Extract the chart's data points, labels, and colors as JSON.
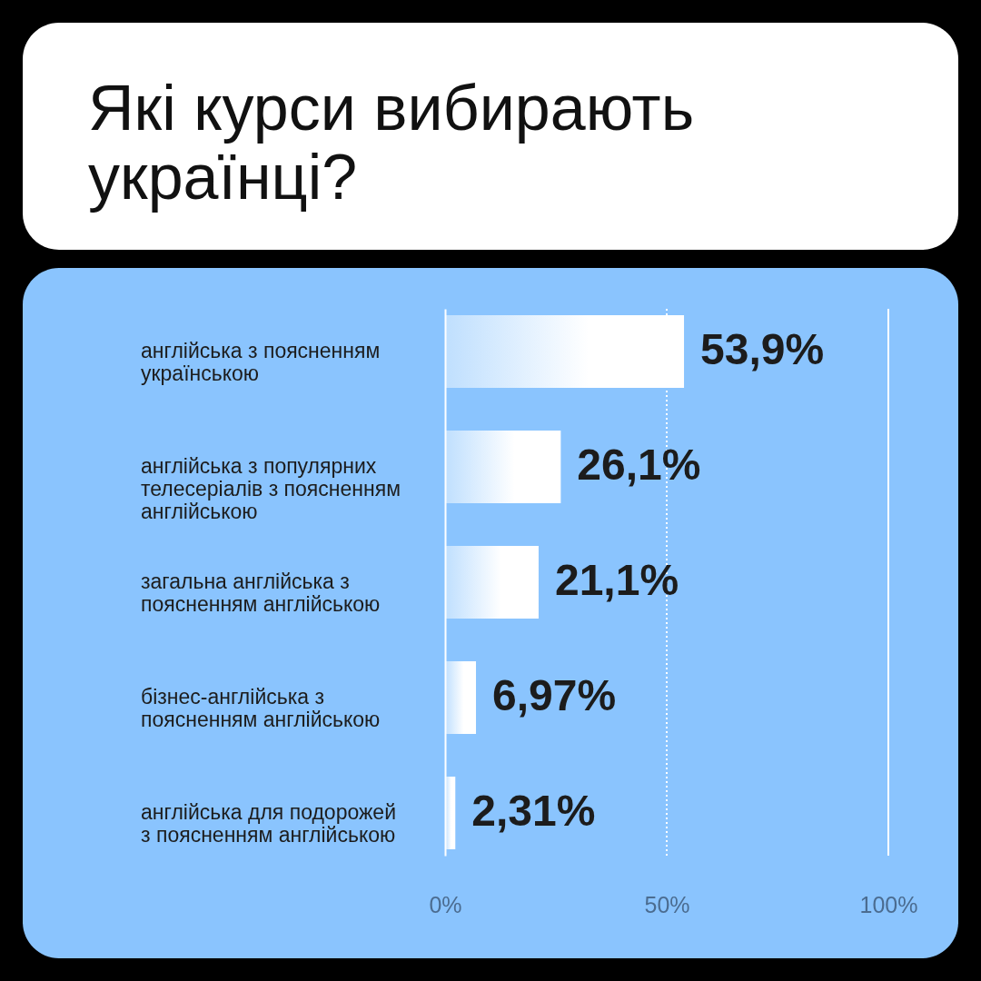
{
  "chart_data": {
    "type": "bar",
    "orientation": "horizontal",
    "title": "Які курси вибирають українці?",
    "categories": [
      "англійська з поясненням українською",
      "англійська з популярних телесеріалів з поясненням англійською",
      "загальна англійська з поясненням англійською",
      "бізнес-англійська з поясненням англійською",
      "англійська для подорожей з поясненням англійською"
    ],
    "values": [
      53.9,
      26.1,
      21.1,
      6.97,
      2.31
    ],
    "value_labels": [
      "53,9%",
      "26,1%",
      "21,1%",
      "6,97%",
      "2,31%"
    ],
    "color": "#ffffff",
    "xlim": [
      0,
      100
    ],
    "xticks": [
      {
        "value": 0,
        "label": "0%"
      },
      {
        "value": 50,
        "label": "50%"
      },
      {
        "value": 100,
        "label": "100%"
      }
    ],
    "ref_lines": [
      {
        "axis": "x",
        "value": 50,
        "color": "#ffffff",
        "line_style": "dotted"
      },
      {
        "axis": "x",
        "value": 100,
        "color": "#ffffff",
        "line_style": "solid"
      }
    ]
  }
}
